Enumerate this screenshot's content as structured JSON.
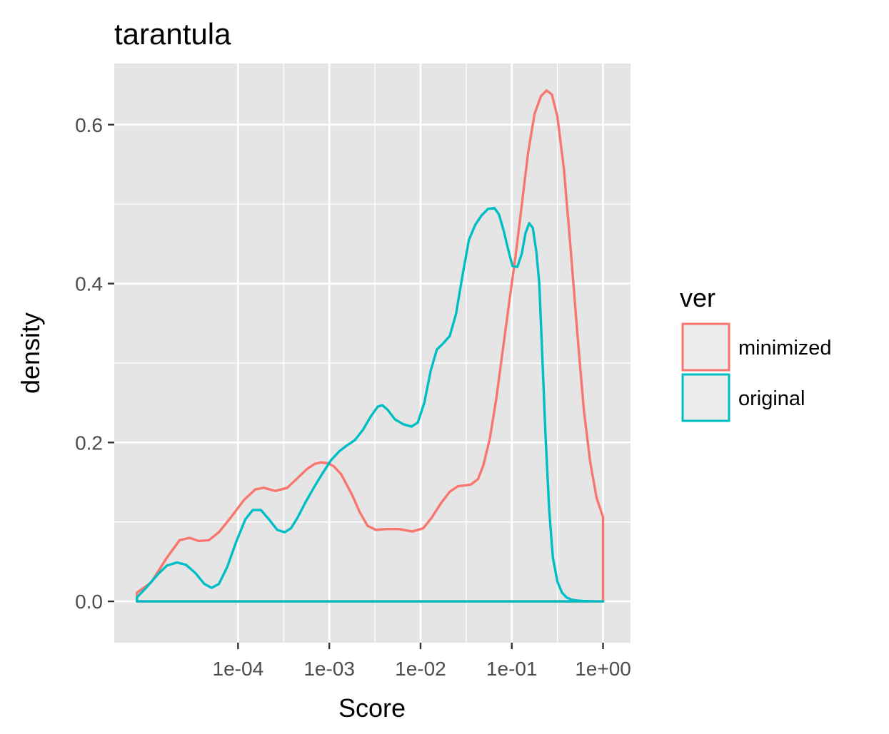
{
  "chart_data": {
    "type": "line",
    "title": "tarantula",
    "xlabel": "Score",
    "ylabel": "density",
    "x_scale": "log10",
    "xlim": [
      4.4e-06,
      2.0
    ],
    "ylim": [
      -0.052,
      0.677
    ],
    "x_ticks": [
      0.0001,
      0.001,
      0.01,
      0.1,
      1
    ],
    "x_tick_labels": [
      "1e-04",
      "1e-03",
      "1e-02",
      "1e-01",
      "1e+00"
    ],
    "y_ticks": [
      0.0,
      0.2,
      0.4,
      0.6
    ],
    "y_tick_labels": [
      "0.0",
      "0.2",
      "0.4",
      "0.6"
    ],
    "grid": true,
    "panel_background": "#e5e5e5",
    "legend": {
      "title": "ver",
      "position": "right",
      "entries": [
        "minimized",
        "original"
      ]
    },
    "series": [
      {
        "name": "minimized",
        "color": "#F8766D",
        "x": [
          7.8e-06,
          7.8e-06,
          1.12e-05,
          1.66e-05,
          2.29e-05,
          2.95e-05,
          3.72e-05,
          4.79e-05,
          6.17e-05,
          8.51e-05,
          0.000117,
          0.000155,
          0.000191,
          0.000257,
          0.000347,
          0.000447,
          0.000575,
          0.000692,
          0.000813,
          0.000955,
          0.00112,
          0.00135,
          0.00178,
          0.00214,
          0.00263,
          0.00324,
          0.00417,
          0.00575,
          0.00813,
          0.0107,
          0.0132,
          0.0166,
          0.0209,
          0.0257,
          0.0309,
          0.0355,
          0.0427,
          0.049,
          0.0575,
          0.0676,
          0.0794,
          0.0933,
          0.11,
          0.129,
          0.151,
          0.178,
          0.209,
          0.24,
          0.275,
          0.316,
          0.372,
          0.437,
          0.525,
          0.617,
          0.724,
          0.851,
          1.0,
          1.0,
          7.8e-06
        ],
        "y": [
          0.0,
          0.011,
          0.024,
          0.055,
          0.077,
          0.08,
          0.076,
          0.077,
          0.087,
          0.107,
          0.128,
          0.141,
          0.143,
          0.139,
          0.143,
          0.155,
          0.167,
          0.173,
          0.175,
          0.174,
          0.17,
          0.16,
          0.134,
          0.113,
          0.095,
          0.09,
          0.091,
          0.091,
          0.088,
          0.092,
          0.105,
          0.123,
          0.138,
          0.145,
          0.146,
          0.147,
          0.154,
          0.172,
          0.205,
          0.255,
          0.315,
          0.375,
          0.435,
          0.5,
          0.565,
          0.614,
          0.636,
          0.643,
          0.638,
          0.61,
          0.545,
          0.45,
          0.335,
          0.24,
          0.175,
          0.13,
          0.106,
          0.0,
          0.0
        ]
      },
      {
        "name": "original",
        "color": "#00BFC4",
        "x": [
          7.8e-06,
          7.8e-06,
          1e-05,
          1.32e-05,
          1.66e-05,
          2.14e-05,
          2.69e-05,
          3.39e-05,
          4.27e-05,
          5.13e-05,
          6.17e-05,
          7.59e-05,
          9.55e-05,
          0.00012,
          0.000145,
          0.000178,
          0.000219,
          0.000269,
          0.000324,
          0.00038,
          0.000447,
          0.00055,
          0.000692,
          0.000851,
          0.00105,
          0.00129,
          0.00155,
          0.00191,
          0.00234,
          0.00282,
          0.00339,
          0.0038,
          0.00437,
          0.00525,
          0.00646,
          0.00794,
          0.00933,
          0.011,
          0.0129,
          0.0151,
          0.0178,
          0.0209,
          0.0245,
          0.0288,
          0.0339,
          0.0398,
          0.0468,
          0.055,
          0.0646,
          0.0724,
          0.0813,
          0.0912,
          0.102,
          0.115,
          0.129,
          0.141,
          0.155,
          0.17,
          0.186,
          0.2,
          0.214,
          0.234,
          0.257,
          0.282,
          0.316,
          0.355,
          0.398,
          0.457,
          0.525,
          0.603,
          0.708,
          0.832,
          1.0,
          7.8e-06
        ],
        "y": [
          0.0,
          0.005,
          0.018,
          0.034,
          0.045,
          0.049,
          0.046,
          0.036,
          0.022,
          0.017,
          0.022,
          0.043,
          0.075,
          0.103,
          0.115,
          0.115,
          0.103,
          0.09,
          0.087,
          0.092,
          0.105,
          0.125,
          0.145,
          0.162,
          0.178,
          0.189,
          0.196,
          0.203,
          0.216,
          0.232,
          0.245,
          0.247,
          0.241,
          0.229,
          0.223,
          0.22,
          0.225,
          0.25,
          0.29,
          0.317,
          0.325,
          0.334,
          0.362,
          0.41,
          0.455,
          0.474,
          0.486,
          0.494,
          0.495,
          0.487,
          0.467,
          0.443,
          0.422,
          0.421,
          0.438,
          0.463,
          0.476,
          0.47,
          0.44,
          0.4,
          0.32,
          0.21,
          0.115,
          0.055,
          0.025,
          0.011,
          0.005,
          0.002,
          0.001,
          0.0005,
          0.0002,
          0.0,
          0.0,
          0.0
        ]
      }
    ]
  }
}
